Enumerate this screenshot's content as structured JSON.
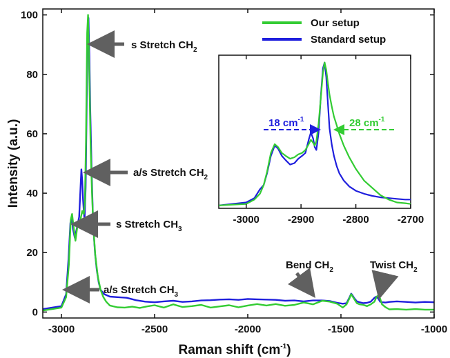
{
  "colors": {
    "our": "#33cc33",
    "standard": "#1f1fdd",
    "arrow": "#606060",
    "axis": "#111111"
  },
  "chart_data": [
    {
      "id": "main",
      "type": "line",
      "xlabel": "Raman shift (cm",
      "xlabel_sup": "-1",
      "xlabel_end": ")",
      "ylabel": "Intensity (a.u.)",
      "xlim": [
        -3100,
        -1000
      ],
      "ylim": [
        -2,
        102
      ],
      "x_ticks": [
        -3000,
        -2500,
        -2000,
        -1500,
        -1000
      ],
      "y_ticks": [
        0,
        20,
        40,
        60,
        80,
        100
      ],
      "x_tick_labels": [
        "-3000",
        "-2500",
        "-2000",
        "-1500",
        "-1000"
      ],
      "y_tick_labels": [
        "0",
        "20",
        "40",
        "60",
        "80",
        "100"
      ],
      "legend": {
        "position": "top-right",
        "entries": [
          {
            "name": "Our setup",
            "color": "#33cc33"
          },
          {
            "name": "Standard setup",
            "color": "#1f1fdd"
          }
        ]
      },
      "series": [
        {
          "name": "Our setup",
          "color": "#33cc33",
          "x": [
            -3100,
            -3000,
            -2975,
            -2960,
            -2950,
            -2943,
            -2935,
            -2925,
            -2912,
            -2900,
            -2895,
            -2888,
            -2880,
            -2874,
            -2868,
            -2862,
            -2857,
            -2853,
            -2848,
            -2843,
            -2836,
            -2828,
            -2818,
            -2805,
            -2790,
            -2775,
            -2760,
            -2740,
            -2700,
            -2660,
            -2620,
            -2580,
            -2540,
            -2500,
            -2450,
            -2400,
            -2350,
            -2300,
            -2250,
            -2200,
            -2150,
            -2100,
            -2050,
            -2000,
            -1950,
            -1900,
            -1850,
            -1800,
            -1750,
            -1700,
            -1650,
            -1600,
            -1560,
            -1520,
            -1490,
            -1470,
            -1455,
            -1445,
            -1440,
            -1430,
            -1415,
            -1400,
            -1380,
            -1360,
            -1340,
            -1320,
            -1310,
            -1300,
            -1290,
            -1280,
            -1260,
            -1240,
            -1200,
            -1150,
            -1100,
            -1050,
            -1000
          ],
          "y": [
            0.5,
            1.5,
            5,
            16,
            31,
            33,
            29,
            24,
            30,
            29,
            32,
            34,
            33,
            37,
            58,
            94,
            100,
            88,
            72,
            55,
            40,
            28,
            19,
            12,
            7.5,
            5,
            3.5,
            2.2,
            1.6,
            1.5,
            1.8,
            1.4,
            1.9,
            2.3,
            1.5,
            2.6,
            1.7,
            2.0,
            2.4,
            1.5,
            1.9,
            2.3,
            1.6,
            2.2,
            2.7,
            2.2,
            2.7,
            2.1,
            2.4,
            3.2,
            2.6,
            3.8,
            3.5,
            2.8,
            1.5,
            2.6,
            4.5,
            6.0,
            5.5,
            4.5,
            3.0,
            2.6,
            2.4,
            2.0,
            2.6,
            3.5,
            5.0,
            5.6,
            4.6,
            2.6,
            1.6,
            0.9,
            1.0,
            0.8,
            1.0,
            0.8,
            0.8
          ]
        },
        {
          "name": "Standard setup",
          "color": "#1f1fdd",
          "x": [
            -3100,
            -3000,
            -2975,
            -2962,
            -2952,
            -2945,
            -2938,
            -2928,
            -2915,
            -2905,
            -2898,
            -2893,
            -2888,
            -2884,
            -2880,
            -2876,
            -2870,
            -2864,
            -2859,
            -2855,
            -2850,
            -2845,
            -2838,
            -2830,
            -2820,
            -2810,
            -2800,
            -2790,
            -2770,
            -2740,
            -2700,
            -2650,
            -2600,
            -2550,
            -2500,
            -2450,
            -2400,
            -2350,
            -2300,
            -2250,
            -2200,
            -2150,
            -2100,
            -2050,
            -2000,
            -1950,
            -1900,
            -1850,
            -1800,
            -1750,
            -1700,
            -1650,
            -1600,
            -1560,
            -1520,
            -1490,
            -1470,
            -1455,
            -1445,
            -1440,
            -1430,
            -1415,
            -1400,
            -1380,
            -1360,
            -1340,
            -1320,
            -1310,
            -1300,
            -1290,
            -1280,
            -1260,
            -1240,
            -1200,
            -1150,
            -1100,
            -1050,
            -1000
          ],
          "y": [
            1.0,
            2.0,
            6,
            18,
            30,
            32,
            28,
            25,
            29,
            32,
            41,
            48,
            44,
            38,
            34,
            31,
            42,
            72,
            95,
            99,
            86,
            68,
            48,
            30,
            20,
            14,
            10,
            7.5,
            6.0,
            5.2,
            5.0,
            4.8,
            4.0,
            3.5,
            3.3,
            3.6,
            3.8,
            3.4,
            3.6,
            3.9,
            4.0,
            4.2,
            4.3,
            4.1,
            4.4,
            4.3,
            4.2,
            4.1,
            3.8,
            3.9,
            3.6,
            3.9,
            3.9,
            3.7,
            3.1,
            2.8,
            3.0,
            4.8,
            6.2,
            5.8,
            4.8,
            3.6,
            3.3,
            3.0,
            3.1,
            3.5,
            4.8,
            5.2,
            4.6,
            3.5,
            3.3,
            3.2,
            3.4,
            3.6,
            3.4,
            3.2,
            3.4,
            3.3
          ]
        }
      ],
      "annotations": [
        {
          "text": "s Stretch CH",
          "sub": "2",
          "x": -2858,
          "y": 91
        },
        {
          "text": "a/s Stretch CH",
          "sub": "2",
          "x": -2880,
          "y": 48
        },
        {
          "text": "s Stretch CH",
          "sub": "3",
          "x": -2920,
          "y": 31
        },
        {
          "text": "a/s Stretch CH",
          "sub": "3",
          "x": -2968,
          "y": 9
        },
        {
          "text": "Bend CH",
          "sub": "2",
          "x": -1443,
          "y": 6.5
        },
        {
          "text": "Twist CH",
          "sub": "2",
          "x": -1308,
          "y": 6.0
        }
      ]
    },
    {
      "id": "inset",
      "type": "line",
      "xlim": [
        -3050,
        -2700
      ],
      "ylim": [
        0,
        105
      ],
      "x_ticks": [
        -3000,
        -2900,
        -2800,
        -2700
      ],
      "x_tick_labels": [
        "-3000",
        "-2900",
        "-2800",
        "-2700"
      ],
      "series": [
        {
          "name": "Our setup",
          "color": "#33cc33",
          "x": [
            -3050,
            -3000,
            -2985,
            -2975,
            -2968,
            -2962,
            -2955,
            -2948,
            -2942,
            -2935,
            -2928,
            -2920,
            -2912,
            -2905,
            -2898,
            -2892,
            -2886,
            -2882,
            -2878,
            -2875,
            -2872,
            -2868,
            -2864,
            -2860,
            -2857,
            -2854,
            -2851,
            -2848,
            -2844,
            -2840,
            -2835,
            -2830,
            -2822,
            -2812,
            -2800,
            -2785,
            -2770,
            -2755,
            -2740,
            -2725,
            -2710,
            -2700
          ],
          "y": [
            2,
            3,
            6,
            10,
            16,
            25,
            38,
            44,
            42,
            38,
            36,
            34,
            35,
            37,
            38,
            40,
            44,
            47,
            45,
            43,
            46,
            58,
            75,
            93,
            100,
            95,
            86,
            78,
            70,
            63,
            57,
            51,
            43,
            35,
            27,
            19,
            14,
            9,
            6,
            4,
            3.5,
            3
          ]
        },
        {
          "name": "Standard setup",
          "color": "#1f1fdd",
          "x": [
            -3050,
            -3000,
            -2985,
            -2975,
            -2968,
            -2962,
            -2955,
            -2948,
            -2942,
            -2935,
            -2928,
            -2920,
            -2912,
            -2905,
            -2898,
            -2892,
            -2886,
            -2882,
            -2878,
            -2875,
            -2872,
            -2868,
            -2864,
            -2860,
            -2857,
            -2854,
            -2851,
            -2848,
            -2844,
            -2840,
            -2835,
            -2830,
            -2822,
            -2812,
            -2800,
            -2785,
            -2770,
            -2755,
            -2740,
            -2725,
            -2710,
            -2700
          ],
          "y": [
            2,
            4,
            7,
            13,
            16,
            24,
            36,
            43,
            41,
            36,
            33,
            30,
            31,
            34,
            36,
            38,
            47,
            52,
            48,
            42,
            40,
            52,
            76,
            96,
            100,
            90,
            72,
            55,
            44,
            36,
            29,
            24,
            19,
            15,
            12,
            10,
            8.5,
            7.5,
            7,
            6.5,
            6,
            6
          ]
        }
      ],
      "width_labels": [
        {
          "text": "18 cm",
          "sup": "-1",
          "color": "#1f1fdd"
        },
        {
          "text": "28 cm",
          "sup": "-1",
          "color": "#33cc33"
        }
      ]
    }
  ]
}
